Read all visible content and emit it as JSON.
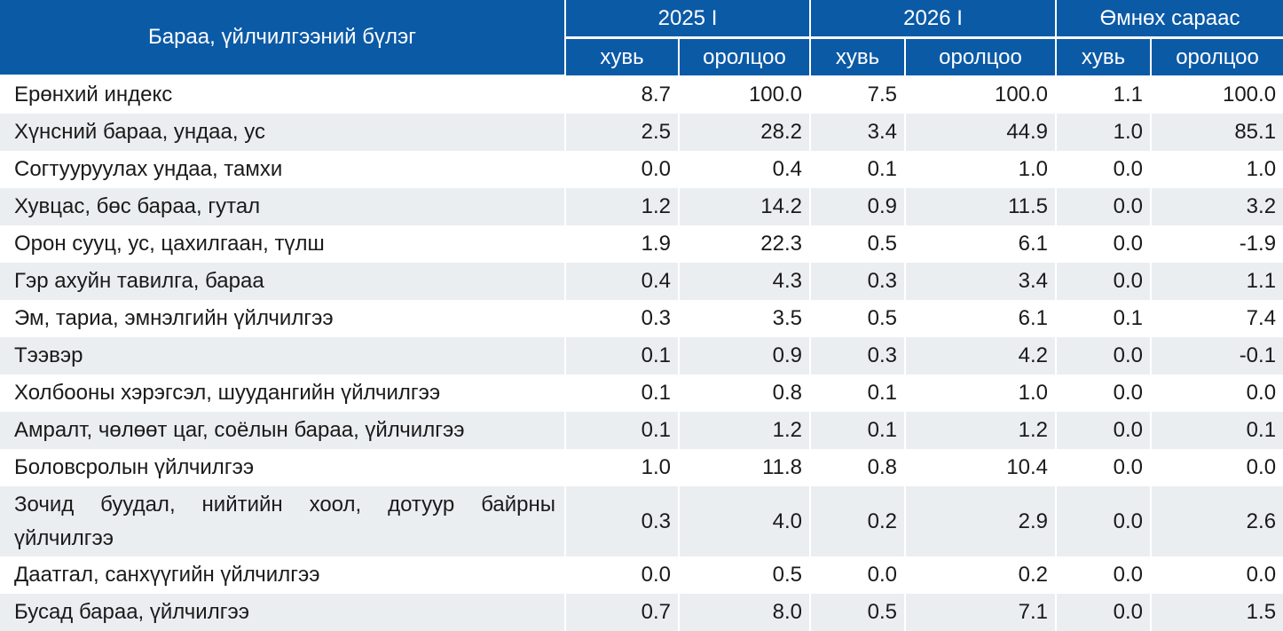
{
  "header": {
    "category": "Бараа, үйлчилгээний бүлэг",
    "groups": [
      "2025 I",
      "2026 I",
      "Өмнөх сараас"
    ],
    "subheaders": [
      "хувь",
      "оролцоо",
      "хувь",
      "оролцоо",
      "хувь",
      "оролцоо"
    ]
  },
  "colors": {
    "header_bg": "#0b5aa6",
    "stripe_bg": "#ebeef0"
  },
  "rows": [
    {
      "label": "Ерөнхий индекс",
      "values": [
        "8.7",
        "100.0",
        "7.5",
        "100.0",
        "1.1",
        "100.0"
      ]
    },
    {
      "label": "Хүнсний бараа, ундаа, ус",
      "values": [
        "2.5",
        "28.2",
        "3.4",
        "44.9",
        "1.0",
        "85.1"
      ]
    },
    {
      "label": "Согтууруулах ундаа, тамхи",
      "values": [
        "0.0",
        "0.4",
        "0.1",
        "1.0",
        "0.0",
        "1.0"
      ]
    },
    {
      "label": "Хувцас, бөс бараа, гутал",
      "values": [
        "1.2",
        "14.2",
        "0.9",
        "11.5",
        "0.0",
        "3.2"
      ]
    },
    {
      "label": "Орон сууц, ус, цахилгаан, түлш",
      "values": [
        "1.9",
        "22.3",
        "0.5",
        "6.1",
        "0.0",
        "-1.9"
      ]
    },
    {
      "label": "Гэр ахуйн тавилга, бараа",
      "values": [
        "0.4",
        "4.3",
        "0.3",
        "3.4",
        "0.0",
        "1.1"
      ]
    },
    {
      "label": "Эм, тариа, эмнэлгийн үйлчилгээ",
      "values": [
        "0.3",
        "3.5",
        "0.5",
        "6.1",
        "0.1",
        "7.4"
      ]
    },
    {
      "label": "Тээвэр",
      "values": [
        "0.1",
        "0.9",
        "0.3",
        "4.2",
        "0.0",
        "-0.1"
      ]
    },
    {
      "label": "Холбооны хэрэгсэл, шуудангийн үйлчилгээ",
      "values": [
        "0.1",
        "0.8",
        "0.1",
        "1.0",
        "0.0",
        "0.0"
      ]
    },
    {
      "label": "Амралт, чөлөөт цаг, соёлын бараа, үйлчилгээ",
      "values": [
        "0.1",
        "1.2",
        "0.1",
        "1.2",
        "0.0",
        "0.1"
      ]
    },
    {
      "label": "Боловсролын үйлчилгээ",
      "values": [
        "1.0",
        "11.8",
        "0.8",
        "10.4",
        "0.0",
        "0.0"
      ]
    },
    {
      "label": "Зочид буудал, нийтийн хоол, дотуур байрны үйлчилгээ",
      "values": [
        "0.3",
        "4.0",
        "0.2",
        "2.9",
        "0.0",
        "2.6"
      ]
    },
    {
      "label": "Даатгал, санхүүгийн үйлчилгээ",
      "values": [
        "0.0",
        "0.5",
        "0.0",
        "0.2",
        "0.0",
        "0.0"
      ]
    },
    {
      "label": "Бусад бараа, үйлчилгээ",
      "values": [
        "0.7",
        "8.0",
        "0.5",
        "7.1",
        "0.0",
        "1.5"
      ]
    }
  ]
}
